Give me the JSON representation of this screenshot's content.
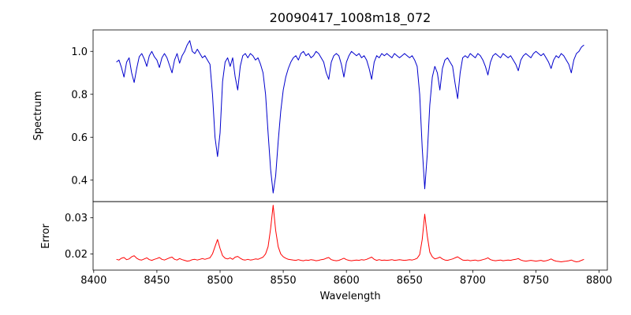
{
  "chart_data": {
    "type": "line",
    "title": "20090417_1008m18_072",
    "xlabel": "Wavelength",
    "xlim": [
      8399.5,
      8806.5
    ],
    "xticks": [
      8400,
      8450,
      8500,
      8550,
      8600,
      8650,
      8700,
      8750,
      8800
    ],
    "xtick_labels": [
      "8400",
      "8450",
      "8500",
      "8550",
      "8600",
      "8650",
      "8700",
      "8750",
      "8800"
    ],
    "grid": false,
    "x": [
      8418,
      8420,
      8422,
      8424,
      8426,
      8428,
      8430,
      8432,
      8434,
      8436,
      8438,
      8440,
      8442,
      8444,
      8446,
      8448,
      8450,
      8452,
      8454,
      8456,
      8458,
      8460,
      8462,
      8464,
      8466,
      8468,
      8470,
      8472,
      8474,
      8476,
      8478,
      8480,
      8482,
      8484,
      8486,
      8488,
      8490,
      8492,
      8494,
      8496,
      8498,
      8500,
      8502,
      8504,
      8506,
      8508,
      8510,
      8512,
      8514,
      8516,
      8518,
      8520,
      8522,
      8524,
      8526,
      8528,
      8530,
      8532,
      8534,
      8536,
      8538,
      8540,
      8542,
      8544,
      8546,
      8548,
      8550,
      8552,
      8554,
      8556,
      8558,
      8560,
      8562,
      8564,
      8566,
      8568,
      8570,
      8572,
      8574,
      8576,
      8578,
      8580,
      8582,
      8584,
      8586,
      8588,
      8590,
      8592,
      8594,
      8596,
      8598,
      8600,
      8602,
      8604,
      8606,
      8608,
      8610,
      8612,
      8614,
      8616,
      8618,
      8620,
      8622,
      8624,
      8626,
      8628,
      8630,
      8632,
      8634,
      8636,
      8638,
      8640,
      8642,
      8644,
      8646,
      8648,
      8650,
      8652,
      8654,
      8656,
      8658,
      8660,
      8662,
      8664,
      8666,
      8668,
      8670,
      8672,
      8674,
      8676,
      8678,
      8680,
      8682,
      8684,
      8686,
      8688,
      8690,
      8692,
      8694,
      8696,
      8698,
      8700,
      8702,
      8704,
      8706,
      8708,
      8710,
      8712,
      8714,
      8716,
      8718,
      8720,
      8722,
      8724,
      8726,
      8728,
      8730,
      8732,
      8734,
      8736,
      8738,
      8740,
      8742,
      8744,
      8746,
      8748,
      8750,
      8752,
      8754,
      8756,
      8758,
      8760,
      8762,
      8764,
      8766,
      8768,
      8770,
      8772,
      8774,
      8776,
      8778,
      8780,
      8782,
      8784,
      8786,
      8788
    ],
    "absorption_line_centers": [
      8498,
      8542,
      8662
    ],
    "panels": [
      {
        "name": "spectrum",
        "ylabel": "Spectrum",
        "color": "#0000cd",
        "ylim": [
          0.3,
          1.1
        ],
        "yticks": [
          0.4,
          0.6,
          0.8,
          1.0
        ],
        "ytick_labels": [
          "0.4",
          "0.6",
          "0.8",
          "1.0"
        ],
        "values": [
          0.95,
          0.96,
          0.925,
          0.88,
          0.95,
          0.97,
          0.9,
          0.855,
          0.92,
          0.975,
          0.99,
          0.965,
          0.93,
          0.98,
          1.0,
          0.975,
          0.96,
          0.925,
          0.97,
          0.99,
          0.97,
          0.935,
          0.9,
          0.96,
          0.99,
          0.945,
          0.98,
          1.0,
          1.03,
          1.05,
          1.0,
          0.99,
          1.01,
          0.99,
          0.97,
          0.98,
          0.96,
          0.94,
          0.8,
          0.6,
          0.51,
          0.62,
          0.86,
          0.95,
          0.97,
          0.93,
          0.97,
          0.88,
          0.82,
          0.93,
          0.98,
          0.99,
          0.97,
          0.99,
          0.98,
          0.96,
          0.97,
          0.94,
          0.9,
          0.8,
          0.62,
          0.45,
          0.34,
          0.42,
          0.58,
          0.72,
          0.82,
          0.88,
          0.92,
          0.95,
          0.97,
          0.98,
          0.96,
          0.99,
          1.0,
          0.98,
          0.99,
          0.97,
          0.98,
          1.0,
          0.99,
          0.97,
          0.95,
          0.9,
          0.87,
          0.95,
          0.98,
          0.99,
          0.98,
          0.94,
          0.88,
          0.95,
          0.98,
          1.0,
          0.99,
          0.98,
          0.99,
          0.97,
          0.98,
          0.96,
          0.92,
          0.87,
          0.95,
          0.98,
          0.97,
          0.99,
          0.98,
          0.99,
          0.98,
          0.97,
          0.99,
          0.98,
          0.97,
          0.98,
          0.99,
          0.98,
          0.97,
          0.98,
          0.96,
          0.93,
          0.8,
          0.55,
          0.36,
          0.52,
          0.75,
          0.88,
          0.93,
          0.9,
          0.82,
          0.92,
          0.96,
          0.97,
          0.95,
          0.93,
          0.85,
          0.78,
          0.9,
          0.97,
          0.98,
          0.97,
          0.99,
          0.98,
          0.97,
          0.99,
          0.98,
          0.96,
          0.93,
          0.89,
          0.95,
          0.98,
          0.99,
          0.98,
          0.97,
          0.99,
          0.98,
          0.97,
          0.98,
          0.96,
          0.94,
          0.91,
          0.96,
          0.98,
          0.99,
          0.98,
          0.97,
          0.99,
          1.0,
          0.99,
          0.98,
          0.99,
          0.97,
          0.95,
          0.92,
          0.96,
          0.98,
          0.97,
          0.99,
          0.98,
          0.96,
          0.94,
          0.9,
          0.96,
          0.99,
          1.0,
          1.02,
          1.03
        ]
      },
      {
        "name": "error",
        "ylabel": "Error",
        "color": "#ff0000",
        "ylim": [
          0.0155,
          0.0345
        ],
        "yticks": [
          0.02,
          0.03
        ],
        "ytick_labels": [
          "0.02",
          "0.03"
        ],
        "values": [
          0.0185,
          0.0183,
          0.0188,
          0.019,
          0.0184,
          0.0186,
          0.0192,
          0.0195,
          0.0188,
          0.0184,
          0.0183,
          0.0186,
          0.0189,
          0.0184,
          0.0182,
          0.0185,
          0.0187,
          0.019,
          0.0185,
          0.0183,
          0.0186,
          0.0189,
          0.0191,
          0.0185,
          0.0183,
          0.0187,
          0.0184,
          0.0182,
          0.018,
          0.0181,
          0.0184,
          0.0185,
          0.0183,
          0.0185,
          0.0187,
          0.0185,
          0.0187,
          0.0189,
          0.02,
          0.022,
          0.024,
          0.0215,
          0.0195,
          0.0188,
          0.0186,
          0.0189,
          0.0185,
          0.0191,
          0.0193,
          0.0188,
          0.0184,
          0.0183,
          0.0185,
          0.0183,
          0.0184,
          0.0186,
          0.0185,
          0.0188,
          0.0191,
          0.02,
          0.022,
          0.027,
          0.0335,
          0.0265,
          0.022,
          0.02,
          0.0192,
          0.0188,
          0.0185,
          0.0184,
          0.0183,
          0.0182,
          0.0184,
          0.0182,
          0.0181,
          0.0183,
          0.0182,
          0.0184,
          0.0183,
          0.0181,
          0.0182,
          0.0184,
          0.0185,
          0.0188,
          0.019,
          0.0184,
          0.0182,
          0.0181,
          0.0182,
          0.0185,
          0.0188,
          0.0184,
          0.0182,
          0.0181,
          0.0182,
          0.0183,
          0.0182,
          0.0184,
          0.0183,
          0.0185,
          0.0188,
          0.0191,
          0.0185,
          0.0182,
          0.0184,
          0.0182,
          0.0183,
          0.0182,
          0.0183,
          0.0184,
          0.0182,
          0.0183,
          0.0184,
          0.0183,
          0.0182,
          0.0183,
          0.0184,
          0.0183,
          0.0185,
          0.0188,
          0.0198,
          0.024,
          0.031,
          0.025,
          0.0205,
          0.0192,
          0.0186,
          0.0188,
          0.0191,
          0.0186,
          0.0183,
          0.0182,
          0.0184,
          0.0186,
          0.0189,
          0.0192,
          0.0187,
          0.0183,
          0.0182,
          0.0183,
          0.0181,
          0.0182,
          0.0183,
          0.0181,
          0.0182,
          0.0184,
          0.0186,
          0.0189,
          0.0184,
          0.0182,
          0.0181,
          0.0182,
          0.0183,
          0.0181,
          0.0182,
          0.0183,
          0.0182,
          0.0184,
          0.0185,
          0.0187,
          0.0183,
          0.0181,
          0.018,
          0.0181,
          0.0182,
          0.0181,
          0.018,
          0.0181,
          0.0182,
          0.018,
          0.0181,
          0.0183,
          0.0186,
          0.0182,
          0.018,
          0.0179,
          0.0178,
          0.0179,
          0.018,
          0.0181,
          0.0183,
          0.018,
          0.0178,
          0.0179,
          0.0182,
          0.0185
        ]
      }
    ]
  }
}
